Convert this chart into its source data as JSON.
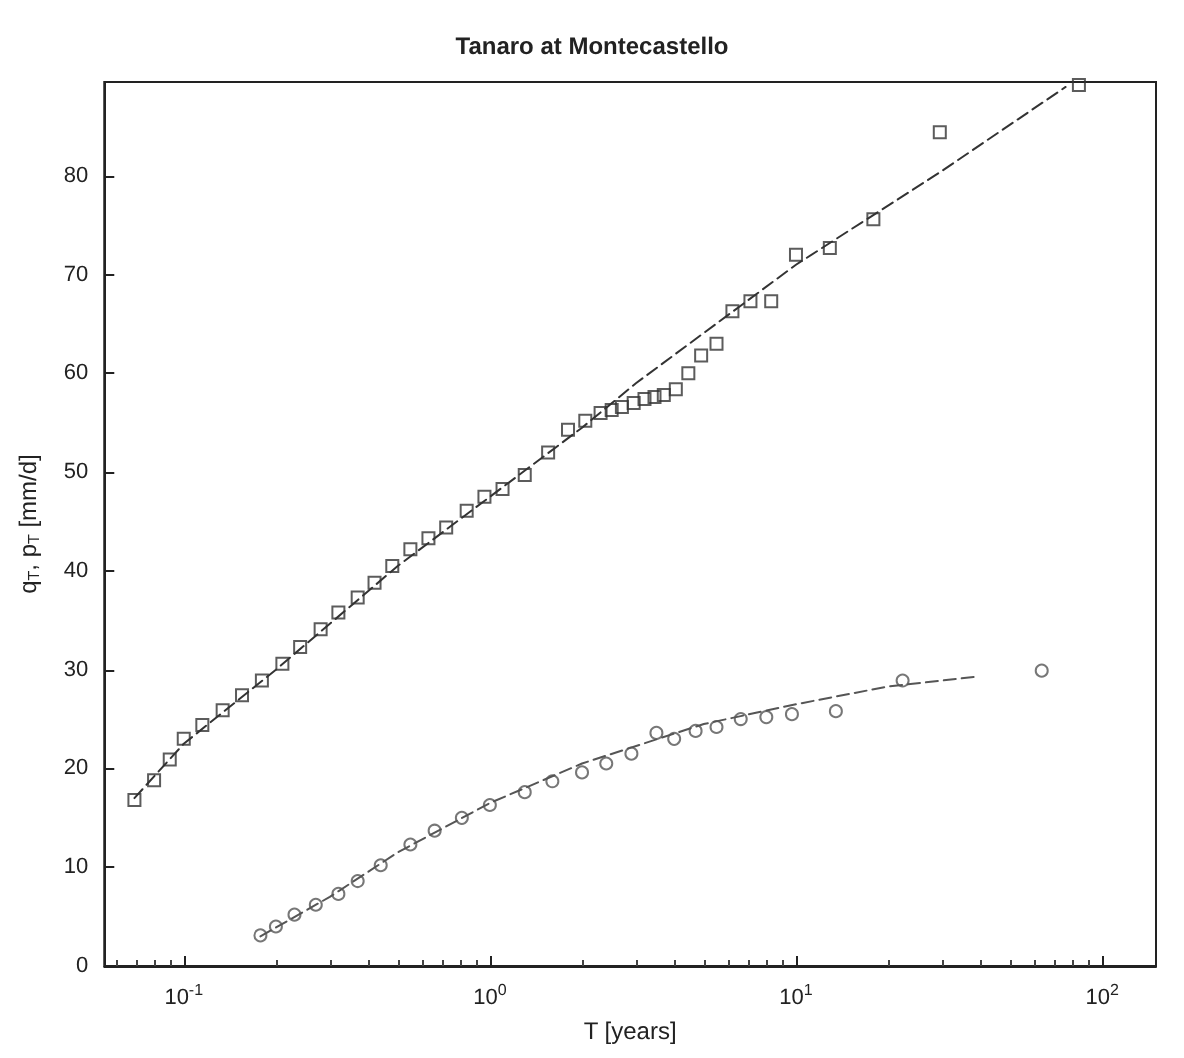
{
  "chart_data": {
    "type": "scatter",
    "title": "Tanaro at Montecastello",
    "xlabel": "T [years]",
    "ylabel": "q$_{T}$, p$_{T}$ [mm/d]",
    "log": "x",
    "xlim": [
      0.055,
      150
    ],
    "ylim": [
      0,
      89.5
    ],
    "xticks": [
      {
        "value": 0.1,
        "label": "10$^{-1}$"
      },
      {
        "value": 1,
        "label": "10$^{0}$"
      },
      {
        "value": 10,
        "label": "10$^{1}$"
      },
      {
        "value": 100,
        "label": "10$^{2}$"
      }
    ],
    "yticks": [
      0,
      10,
      20,
      30,
      40,
      50,
      60,
      70,
      80
    ],
    "grid": false,
    "series": [
      {
        "marker": "square",
        "color": "#333333",
        "x": [
          0.069,
          0.08,
          0.09,
          0.1,
          0.115,
          0.134,
          0.155,
          0.18,
          0.21,
          0.24,
          0.28,
          0.32,
          0.37,
          0.42,
          0.48,
          0.55,
          0.63,
          0.72,
          0.84,
          0.96,
          1.1,
          1.3,
          1.55,
          1.8,
          2.05,
          2.3,
          2.5,
          2.7,
          2.95,
          3.2,
          3.45,
          3.7,
          4.05,
          4.45,
          4.9,
          5.5,
          6.2,
          7.1,
          8.3,
          10,
          12.9,
          17.9,
          29.5,
          84
        ],
        "values": [
          16.8,
          18.8,
          20.9,
          23,
          24.4,
          25.9,
          27.4,
          28.9,
          30.6,
          32.3,
          34.1,
          35.8,
          37.3,
          38.8,
          40.5,
          42.2,
          43.3,
          44.4,
          46.1,
          47.5,
          48.3,
          49.7,
          52,
          54.3,
          55.2,
          56,
          56.3,
          56.6,
          57,
          57.4,
          57.6,
          57.8,
          58.4,
          60,
          61.8,
          63,
          66.3,
          67.3,
          67.3,
          72,
          72.7,
          75.6,
          84.4,
          89.2
        ]
      },
      {
        "type": "line",
        "line_style": "dashed",
        "color": "#333333",
        "x": [
          0.069,
          0.1,
          0.2,
          0.5,
          1,
          2,
          3,
          10,
          30,
          76
        ],
        "values": [
          17,
          22.5,
          30,
          40.5,
          47.5,
          54.5,
          59,
          71,
          80.5,
          89
        ]
      },
      {
        "marker": "circle",
        "color": "#555555",
        "x": [
          0.178,
          0.2,
          0.23,
          0.27,
          0.32,
          0.37,
          0.44,
          0.55,
          0.66,
          0.81,
          1.0,
          1.3,
          1.6,
          2.0,
          2.4,
          2.9,
          3.5,
          4.0,
          4.7,
          5.5,
          6.6,
          8.0,
          9.7,
          13.5,
          22.3,
          63.5
        ],
        "values": [
          3.1,
          4.0,
          5.2,
          6.2,
          7.3,
          8.6,
          10.2,
          12.3,
          13.7,
          15,
          16.3,
          17.6,
          18.7,
          19.6,
          20.5,
          21.5,
          23.6,
          23.0,
          23.8,
          24.2,
          25,
          25.2,
          25.5,
          25.8,
          28.9,
          29.9
        ]
      },
      {
        "type": "line",
        "line_style": "dashed",
        "color": "#555555",
        "x": [
          0.178,
          0.3,
          0.5,
          1,
          2,
          5,
          10,
          20,
          39
        ],
        "values": [
          3,
          7,
          11.5,
          16.5,
          20.5,
          24.5,
          26.5,
          28.3,
          29.3
        ]
      }
    ]
  }
}
